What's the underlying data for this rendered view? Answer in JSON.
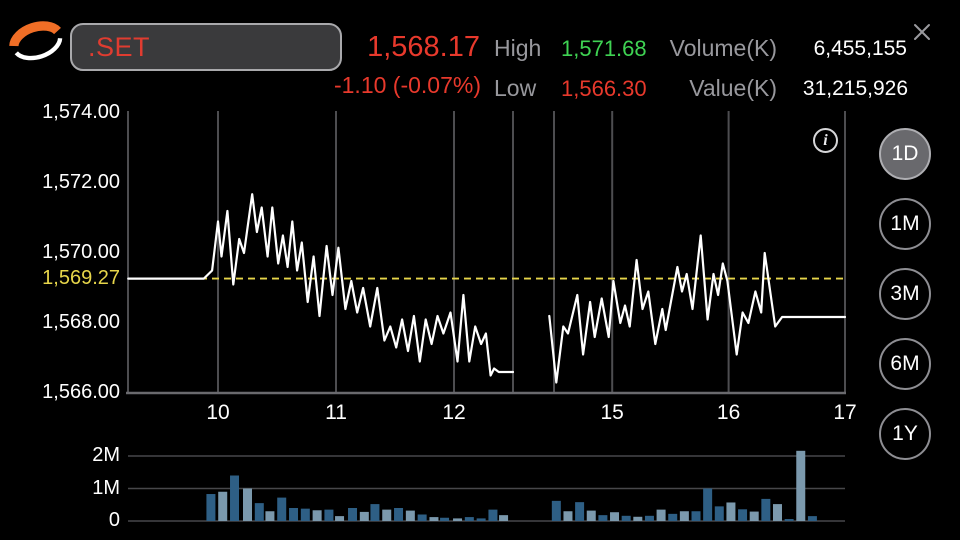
{
  "header": {
    "symbol_input": {
      "value": ".SET"
    },
    "last_price": "1,568.17",
    "change": "-1.10 (-0.07%)",
    "stats": {
      "high_label": "High",
      "high_value": "1,571.68",
      "low_label": "Low",
      "low_value": "1,566.30",
      "volume_label": "Volume(K)",
      "volume_value": "6,455,155",
      "value_label": "Value(K)",
      "value_value": "31,215,926"
    }
  },
  "info_icon_glyph": "i",
  "timeframes": [
    {
      "label": "1D",
      "selected": true
    },
    {
      "label": "1M",
      "selected": false
    },
    {
      "label": "3M",
      "selected": false
    },
    {
      "label": "6M",
      "selected": false
    },
    {
      "label": "1Y",
      "selected": false
    }
  ],
  "colors": {
    "negative_red": "#e8392c",
    "positive_green": "#3fd353",
    "label_gray": "#98989d",
    "prev_close_yellow": "#e6d54a",
    "price_line": "#ffffff",
    "volume_bar_dark": "#2e5f85",
    "volume_bar_light": "#7b99ad",
    "grid": "#4d4d50",
    "axis": "#6a6a6e",
    "selected_button_fill": "#69696d"
  },
  "chart_data": {
    "type": "line",
    "title": ".SET intraday price with volume",
    "price_axis": {
      "min": 1566,
      "max": 1574,
      "ticks": [
        {
          "value": 1574,
          "label": "1,574.00"
        },
        {
          "value": 1572,
          "label": "1,572.00"
        },
        {
          "value": 1570,
          "label": "1,570.00"
        },
        {
          "value": 1568,
          "label": "1,568.00"
        },
        {
          "value": 1566,
          "label": "1,566.00"
        }
      ]
    },
    "prev_close": {
      "value": 1569.27,
      "label": "1,569.27"
    },
    "time_axis": {
      "ticks": [
        {
          "t": 10,
          "label": "10"
        },
        {
          "t": 11,
          "label": "11"
        },
        {
          "t": 12,
          "label": "12"
        },
        {
          "t": 15,
          "label": "15"
        },
        {
          "t": 16,
          "label": "16"
        },
        {
          "t": 17,
          "label": "17"
        }
      ],
      "gridline_ts": [
        10,
        11,
        12,
        12.5,
        14.5,
        15,
        16,
        17
      ],
      "sessions": [
        {
          "start": 9.24,
          "end": 12.5
        },
        {
          "start": 14.46,
          "end": 17.0
        }
      ]
    },
    "price_series": [
      {
        "session": "morning",
        "points": [
          [
            9.24,
            1569.27
          ],
          [
            9.88,
            1569.27
          ],
          [
            9.95,
            1569.5
          ],
          [
            10.0,
            1570.9
          ],
          [
            10.03,
            1569.9
          ],
          [
            10.08,
            1571.2
          ],
          [
            10.13,
            1569.1
          ],
          [
            10.18,
            1570.4
          ],
          [
            10.22,
            1570.0
          ],
          [
            10.29,
            1571.68
          ],
          [
            10.33,
            1570.6
          ],
          [
            10.37,
            1571.3
          ],
          [
            10.42,
            1569.9
          ],
          [
            10.46,
            1571.3
          ],
          [
            10.51,
            1569.7
          ],
          [
            10.55,
            1570.5
          ],
          [
            10.59,
            1569.6
          ],
          [
            10.63,
            1570.9
          ],
          [
            10.67,
            1569.5
          ],
          [
            10.71,
            1570.3
          ],
          [
            10.76,
            1568.6
          ],
          [
            10.81,
            1569.9
          ],
          [
            10.86,
            1568.2
          ],
          [
            10.92,
            1570.2
          ],
          [
            10.97,
            1568.8
          ],
          [
            11.02,
            1570.15
          ],
          [
            11.08,
            1568.4
          ],
          [
            11.13,
            1569.2
          ],
          [
            11.18,
            1568.3
          ],
          [
            11.23,
            1569.0
          ],
          [
            11.29,
            1567.9
          ],
          [
            11.35,
            1569.0
          ],
          [
            11.41,
            1567.5
          ],
          [
            11.46,
            1567.9
          ],
          [
            11.51,
            1567.3
          ],
          [
            11.56,
            1568.1
          ],
          [
            11.61,
            1567.2
          ],
          [
            11.66,
            1568.2
          ],
          [
            11.71,
            1566.9
          ],
          [
            11.76,
            1568.1
          ],
          [
            11.81,
            1567.4
          ],
          [
            11.86,
            1568.2
          ],
          [
            11.91,
            1567.7
          ],
          [
            11.97,
            1568.3
          ],
          [
            12.03,
            1566.9
          ],
          [
            12.08,
            1568.8
          ],
          [
            12.13,
            1566.9
          ],
          [
            12.18,
            1567.9
          ],
          [
            12.23,
            1567.4
          ],
          [
            12.27,
            1567.7
          ],
          [
            12.31,
            1566.5
          ],
          [
            12.34,
            1566.7
          ],
          [
            12.38,
            1566.6
          ],
          [
            12.5,
            1566.6
          ]
        ]
      },
      {
        "session": "afternoon",
        "points": [
          [
            14.46,
            1568.2
          ],
          [
            14.52,
            1566.3
          ],
          [
            14.58,
            1567.9
          ],
          [
            14.62,
            1567.7
          ],
          [
            14.7,
            1568.8
          ],
          [
            14.75,
            1567.1
          ],
          [
            14.81,
            1568.6
          ],
          [
            14.85,
            1567.6
          ],
          [
            14.91,
            1568.7
          ],
          [
            14.97,
            1567.6
          ],
          [
            15.01,
            1569.2
          ],
          [
            15.07,
            1568.0
          ],
          [
            15.11,
            1568.5
          ],
          [
            15.15,
            1567.9
          ],
          [
            15.21,
            1569.8
          ],
          [
            15.26,
            1568.4
          ],
          [
            15.31,
            1568.9
          ],
          [
            15.37,
            1567.4
          ],
          [
            15.43,
            1568.4
          ],
          [
            15.46,
            1567.8
          ],
          [
            15.56,
            1569.6
          ],
          [
            15.6,
            1568.9
          ],
          [
            15.64,
            1569.4
          ],
          [
            15.69,
            1568.4
          ],
          [
            15.76,
            1570.5
          ],
          [
            15.82,
            1568.1
          ],
          [
            15.87,
            1569.4
          ],
          [
            15.91,
            1568.8
          ],
          [
            15.95,
            1569.7
          ],
          [
            15.99,
            1569.2
          ],
          [
            16.07,
            1567.1
          ],
          [
            16.12,
            1568.3
          ],
          [
            16.17,
            1568.0
          ],
          [
            16.23,
            1568.9
          ],
          [
            16.28,
            1568.3
          ],
          [
            16.31,
            1570.0
          ],
          [
            16.4,
            1567.9
          ],
          [
            16.46,
            1568.17
          ],
          [
            17.0,
            1568.17
          ]
        ]
      }
    ],
    "volume_axis": {
      "max": 2.4,
      "ticks": [
        {
          "value": 2,
          "label": "2M"
        },
        {
          "value": 1,
          "label": "1M"
        },
        {
          "value": 0,
          "label": "0"
        }
      ]
    },
    "volume_bars": [
      [
        9.94,
        0.83,
        "d"
      ],
      [
        10.04,
        0.9,
        "l"
      ],
      [
        10.14,
        1.4,
        "d"
      ],
      [
        10.25,
        1.0,
        "l"
      ],
      [
        10.35,
        0.55,
        "d"
      ],
      [
        10.44,
        0.3,
        "l"
      ],
      [
        10.54,
        0.72,
        "d"
      ],
      [
        10.64,
        0.4,
        "d"
      ],
      [
        10.74,
        0.38,
        "d"
      ],
      [
        10.84,
        0.33,
        "l"
      ],
      [
        10.94,
        0.35,
        "d"
      ],
      [
        11.03,
        0.15,
        "l"
      ],
      [
        11.14,
        0.4,
        "d"
      ],
      [
        11.24,
        0.28,
        "l"
      ],
      [
        11.33,
        0.52,
        "d"
      ],
      [
        11.43,
        0.35,
        "l"
      ],
      [
        11.53,
        0.4,
        "d"
      ],
      [
        11.63,
        0.32,
        "l"
      ],
      [
        11.73,
        0.2,
        "d"
      ],
      [
        11.83,
        0.12,
        "l"
      ],
      [
        11.92,
        0.1,
        "d"
      ],
      [
        12.03,
        0.08,
        "l"
      ],
      [
        12.13,
        0.12,
        "d"
      ],
      [
        12.23,
        0.08,
        "d"
      ],
      [
        12.33,
        0.35,
        "d"
      ],
      [
        12.42,
        0.18,
        "l"
      ],
      [
        14.52,
        0.62,
        "d"
      ],
      [
        14.62,
        0.3,
        "l"
      ],
      [
        14.72,
        0.58,
        "d"
      ],
      [
        14.82,
        0.32,
        "l"
      ],
      [
        14.92,
        0.18,
        "d"
      ],
      [
        15.02,
        0.27,
        "l"
      ],
      [
        15.12,
        0.16,
        "d"
      ],
      [
        15.22,
        0.13,
        "l"
      ],
      [
        15.32,
        0.16,
        "d"
      ],
      [
        15.42,
        0.35,
        "l"
      ],
      [
        15.52,
        0.22,
        "d"
      ],
      [
        15.62,
        0.3,
        "l"
      ],
      [
        15.72,
        0.3,
        "d"
      ],
      [
        15.82,
        1.0,
        "d"
      ],
      [
        15.92,
        0.45,
        "d"
      ],
      [
        16.02,
        0.57,
        "l"
      ],
      [
        16.12,
        0.36,
        "d"
      ],
      [
        16.22,
        0.29,
        "l"
      ],
      [
        16.32,
        0.68,
        "d"
      ],
      [
        16.42,
        0.52,
        "l"
      ],
      [
        16.52,
        0.06,
        "d"
      ],
      [
        16.62,
        2.16,
        "l"
      ],
      [
        16.72,
        0.15,
        "d"
      ]
    ]
  }
}
